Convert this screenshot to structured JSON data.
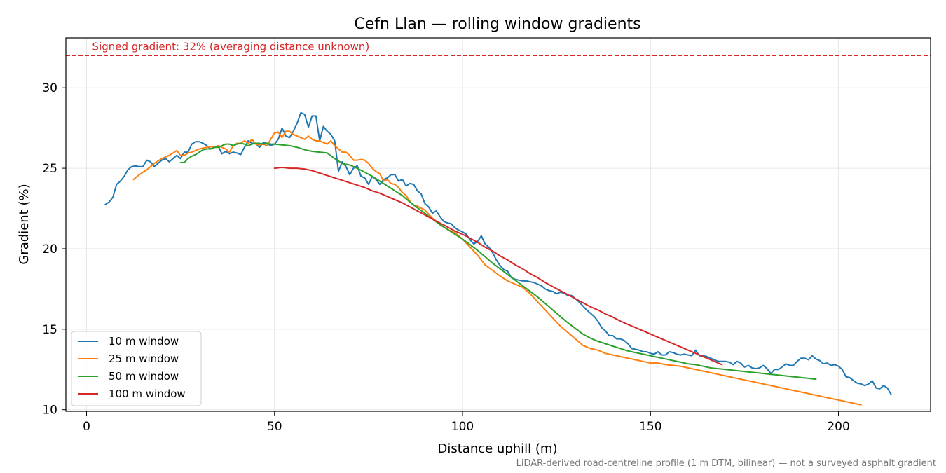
{
  "chart_data": {
    "type": "line",
    "title": "Cefn Llan — rolling window gradients",
    "xlabel": "Distance uphill (m)",
    "ylabel": "Gradient (%)",
    "xlim": [
      -5.5,
      224.5
    ],
    "ylim": [
      9.9,
      33.1
    ],
    "xticks": [
      0,
      50,
      100,
      150,
      200
    ],
    "yticks": [
      10,
      15,
      20,
      25,
      30
    ],
    "grid": true,
    "legend_position": "lower-left",
    "reference_line": {
      "y": 32,
      "label": "Signed gradient: 32% (averaging distance unknown)",
      "color": "#d62728"
    },
    "footnote": "LiDAR-derived road-centreline profile (1 m DTM, bilinear) — not a surveyed asphalt gradient",
    "series": [
      {
        "name": "10 m window",
        "color": "#1f77b4",
        "x": [
          5,
          6,
          7,
          8,
          9,
          10,
          11,
          12,
          13,
          14,
          15,
          16,
          17,
          18,
          19,
          20,
          21,
          22,
          23,
          24,
          25,
          26,
          27,
          28,
          29,
          30,
          31,
          32,
          33,
          34,
          35,
          36,
          37,
          38,
          39,
          40,
          41,
          42,
          43,
          44,
          45,
          46,
          47,
          48,
          49,
          50,
          51,
          52,
          53,
          54,
          55,
          56,
          57,
          58,
          59,
          60,
          61,
          62,
          63,
          64,
          65,
          66,
          67,
          68,
          69,
          70,
          71,
          72,
          73,
          74,
          75,
          76,
          77,
          78,
          79,
          80,
          81,
          82,
          83,
          84,
          85,
          86,
          87,
          88,
          89,
          90,
          91,
          92,
          93,
          94,
          95,
          96,
          97,
          98,
          99,
          100,
          101,
          102,
          103,
          104,
          105,
          106,
          107,
          108,
          109,
          110,
          111,
          112,
          113,
          114,
          115,
          116,
          117,
          118,
          119,
          120,
          121,
          122,
          123,
          124,
          125,
          126,
          127,
          128,
          129,
          130,
          131,
          132,
          133,
          134,
          135,
          136,
          137,
          138,
          139,
          140,
          141,
          142,
          143,
          144,
          145,
          146,
          147,
          148,
          149,
          150,
          151,
          152,
          153,
          154,
          155,
          156,
          157,
          158,
          159,
          160,
          161,
          162,
          163,
          164,
          165,
          166,
          167,
          168,
          169,
          170,
          171,
          172,
          173,
          174,
          175,
          176,
          177,
          178,
          179,
          180,
          181,
          182,
          183,
          184,
          185,
          186,
          187,
          188,
          189,
          190,
          191,
          192,
          193,
          194,
          195,
          196,
          197,
          198,
          199,
          200,
          201,
          202,
          203,
          204,
          205,
          206,
          207,
          208,
          209,
          210,
          211,
          212,
          213,
          214
        ],
        "y": [
          22.75,
          22.9,
          23.2,
          24.0,
          24.2,
          24.5,
          24.9,
          25.1,
          25.15,
          25.1,
          25.1,
          25.5,
          25.4,
          25.1,
          25.3,
          25.5,
          25.6,
          25.4,
          25.6,
          25.8,
          25.6,
          26.0,
          26.0,
          26.5,
          26.65,
          26.65,
          26.55,
          26.4,
          26.2,
          26.3,
          26.4,
          25.9,
          26.05,
          25.9,
          26.0,
          25.95,
          25.85,
          26.3,
          26.7,
          26.55,
          26.55,
          26.3,
          26.6,
          26.55,
          26.4,
          26.5,
          26.8,
          27.5,
          27.0,
          26.9,
          27.3,
          27.8,
          28.45,
          28.35,
          27.55,
          28.25,
          28.25,
          26.7,
          27.6,
          27.3,
          27.1,
          26.7,
          24.8,
          25.4,
          25.1,
          24.6,
          25.0,
          25.15,
          24.5,
          24.4,
          24.0,
          24.5,
          24.3,
          24.0,
          24.3,
          24.4,
          24.6,
          24.6,
          24.2,
          24.3,
          23.9,
          24.05,
          24.0,
          23.6,
          23.4,
          22.8,
          22.6,
          22.2,
          22.35,
          22.0,
          21.7,
          21.6,
          21.55,
          21.3,
          21.15,
          21.05,
          20.9,
          20.55,
          20.3,
          20.45,
          20.8,
          20.3,
          20.1,
          19.75,
          19.3,
          18.95,
          18.7,
          18.6,
          18.2,
          18.1,
          18.05,
          18.0,
          18.0,
          17.95,
          17.9,
          17.8,
          17.7,
          17.5,
          17.4,
          17.35,
          17.2,
          17.3,
          17.25,
          17.1,
          17.1,
          16.9,
          16.7,
          16.45,
          16.2,
          16.0,
          15.8,
          15.5,
          15.1,
          14.9,
          14.6,
          14.6,
          14.4,
          14.4,
          14.3,
          14.1,
          13.8,
          13.75,
          13.7,
          13.6,
          13.6,
          13.5,
          13.45,
          13.6,
          13.4,
          13.4,
          13.6,
          13.55,
          13.45,
          13.4,
          13.45,
          13.4,
          13.35,
          13.7,
          13.35,
          13.35,
          13.3,
          13.2,
          13.1,
          13.0,
          13.0,
          13.0,
          12.95,
          12.8,
          13.0,
          12.9,
          12.65,
          12.75,
          12.6,
          12.55,
          12.6,
          12.75,
          12.55,
          12.25,
          12.5,
          12.5,
          12.65,
          12.85,
          12.75,
          12.75,
          13.0,
          13.2,
          13.2,
          13.1,
          13.35,
          13.15,
          13.05,
          12.85,
          12.9,
          12.75,
          12.8,
          12.7,
          12.5,
          12.05,
          12.0,
          11.8,
          11.65,
          11.6,
          11.5,
          11.6,
          11.8,
          11.35,
          11.3,
          11.5,
          11.35,
          10.95
        ]
      },
      {
        "name": "25 m window",
        "color": "#ff7f0e",
        "x": [
          12.5,
          14,
          16,
          18,
          20,
          22,
          23,
          24,
          25,
          26,
          27,
          28,
          29,
          30,
          31,
          32,
          33,
          34,
          35,
          36,
          37,
          38,
          39,
          40,
          41,
          42,
          43,
          44,
          45,
          46,
          47,
          48,
          49,
          50,
          51,
          52,
          53,
          54,
          55,
          56,
          57,
          58,
          59,
          60,
          61,
          62,
          63,
          64,
          65,
          66,
          67,
          68,
          69,
          70,
          71,
          72,
          73,
          74,
          75,
          76,
          77,
          78,
          79,
          80,
          81,
          82,
          83,
          84,
          85,
          86,
          87,
          88,
          90,
          92,
          94,
          96,
          98,
          100,
          102,
          104,
          106,
          108,
          110,
          112,
          114,
          116,
          118,
          120,
          122,
          124,
          126,
          128,
          130,
          132,
          134,
          136,
          138,
          140,
          142,
          144,
          146,
          148,
          150,
          152,
          154,
          156,
          158,
          160,
          162,
          164,
          166,
          168,
          170,
          172,
          174,
          176,
          178,
          180,
          182,
          184,
          186,
          188,
          190,
          192,
          194,
          196,
          198,
          200,
          202,
          204,
          206
        ],
        "y": [
          24.3,
          24.6,
          24.9,
          25.3,
          25.6,
          25.8,
          25.95,
          26.1,
          25.8,
          25.8,
          25.95,
          26.0,
          26.1,
          26.2,
          26.25,
          26.3,
          26.35,
          26.3,
          26.4,
          26.3,
          26.2,
          26.0,
          26.4,
          26.55,
          26.55,
          26.7,
          26.55,
          26.8,
          26.5,
          26.45,
          26.5,
          26.4,
          26.8,
          27.2,
          27.25,
          26.9,
          27.3,
          27.3,
          27.1,
          27.0,
          26.9,
          26.8,
          27.0,
          26.8,
          26.7,
          26.7,
          26.6,
          26.5,
          26.7,
          26.4,
          26.2,
          26.0,
          26.0,
          25.8,
          25.5,
          25.5,
          25.55,
          25.5,
          25.3,
          25.0,
          24.8,
          24.65,
          24.2,
          24.3,
          24.05,
          24.0,
          23.8,
          23.5,
          23.3,
          22.95,
          22.7,
          22.65,
          22.4,
          21.9,
          21.5,
          21.2,
          21.0,
          20.6,
          20.1,
          19.6,
          19.0,
          18.65,
          18.3,
          18.0,
          17.8,
          17.6,
          17.2,
          16.7,
          16.2,
          15.7,
          15.2,
          14.8,
          14.4,
          14.0,
          13.8,
          13.7,
          13.5,
          13.4,
          13.3,
          13.2,
          13.1,
          13.0,
          12.9,
          12.9,
          12.8,
          12.75,
          12.7,
          12.6,
          12.5,
          12.4,
          12.3,
          12.2,
          12.1,
          12.0,
          11.9,
          11.8,
          11.7,
          11.6,
          11.5,
          11.4,
          11.3,
          11.2,
          11.1,
          11.0,
          10.9,
          10.8,
          10.7,
          10.6,
          10.5,
          10.4,
          10.3
        ]
      },
      {
        "name": "50 m window",
        "color": "#2ca02c",
        "x": [
          25,
          26,
          27,
          28,
          29,
          30,
          31,
          32,
          33,
          34,
          35,
          36,
          37,
          38,
          39,
          40,
          41,
          42,
          43,
          44,
          45,
          46,
          47,
          48,
          49,
          50,
          52,
          54,
          56,
          58,
          60,
          62,
          64,
          66,
          68,
          70,
          72,
          74,
          76,
          78,
          80,
          82,
          84,
          86,
          88,
          90,
          92,
          94,
          96,
          98,
          100,
          102,
          104,
          106,
          108,
          110,
          112,
          114,
          116,
          118,
          120,
          122,
          124,
          126,
          128,
          130,
          132,
          134,
          136,
          138,
          140,
          142,
          144,
          146,
          148,
          150,
          152,
          154,
          156,
          158,
          160,
          162,
          164,
          166,
          168,
          170,
          172,
          174,
          176,
          178,
          180,
          182,
          184,
          186,
          188,
          190,
          192,
          194
        ],
        "y": [
          25.35,
          25.35,
          25.6,
          25.75,
          25.85,
          26.0,
          26.15,
          26.2,
          26.2,
          26.3,
          26.3,
          26.4,
          26.5,
          26.5,
          26.4,
          26.5,
          26.55,
          26.5,
          26.4,
          26.5,
          26.55,
          26.55,
          26.5,
          26.55,
          26.5,
          26.5,
          26.45,
          26.4,
          26.3,
          26.15,
          26.05,
          26.0,
          25.95,
          25.6,
          25.3,
          25.2,
          25.0,
          24.75,
          24.5,
          24.2,
          23.9,
          23.6,
          23.3,
          22.9,
          22.55,
          22.2,
          21.85,
          21.5,
          21.2,
          20.9,
          20.6,
          20.25,
          19.9,
          19.5,
          19.1,
          18.75,
          18.4,
          18.05,
          17.7,
          17.35,
          17.0,
          16.6,
          16.2,
          15.8,
          15.4,
          15.05,
          14.7,
          14.45,
          14.25,
          14.1,
          13.95,
          13.8,
          13.65,
          13.55,
          13.45,
          13.35,
          13.25,
          13.15,
          13.05,
          12.95,
          12.85,
          12.8,
          12.7,
          12.6,
          12.55,
          12.5,
          12.45,
          12.4,
          12.35,
          12.3,
          12.25,
          12.2,
          12.15,
          12.1,
          12.05,
          12.0,
          11.95,
          11.9
        ]
      },
      {
        "name": "100 m window",
        "color": "#d62728",
        "x": [
          50,
          52,
          54,
          56,
          58,
          60,
          62,
          64,
          66,
          68,
          70,
          72,
          74,
          76,
          78,
          80,
          82,
          84,
          86,
          88,
          90,
          92,
          94,
          96,
          98,
          100,
          102,
          104,
          106,
          108,
          110,
          112,
          114,
          116,
          118,
          120,
          122,
          124,
          126,
          128,
          130,
          132,
          134,
          136,
          138,
          140,
          142,
          144,
          146,
          148,
          150,
          152,
          154,
          156,
          158,
          160,
          162,
          164,
          166,
          168,
          169
        ],
        "y": [
          25.0,
          25.05,
          25.0,
          25.0,
          24.95,
          24.85,
          24.7,
          24.55,
          24.4,
          24.25,
          24.1,
          23.95,
          23.8,
          23.6,
          23.45,
          23.25,
          23.05,
          22.85,
          22.6,
          22.35,
          22.1,
          21.85,
          21.6,
          21.35,
          21.1,
          20.9,
          20.65,
          20.4,
          20.1,
          19.85,
          19.55,
          19.3,
          19.0,
          18.75,
          18.45,
          18.2,
          17.9,
          17.65,
          17.4,
          17.15,
          16.9,
          16.65,
          16.4,
          16.2,
          15.95,
          15.75,
          15.5,
          15.3,
          15.1,
          14.9,
          14.7,
          14.5,
          14.3,
          14.1,
          13.9,
          13.7,
          13.5,
          13.3,
          13.1,
          12.9,
          12.8
        ]
      }
    ]
  }
}
